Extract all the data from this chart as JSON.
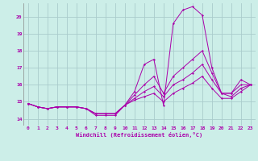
{
  "xlabel": "Windchill (Refroidissement éolien,°C)",
  "ylabel": "",
  "xlim": [
    -0.5,
    23.5
  ],
  "ylim": [
    13.6,
    20.8
  ],
  "yticks": [
    14,
    15,
    16,
    17,
    18,
    19,
    20
  ],
  "xticks": [
    0,
    1,
    2,
    3,
    4,
    5,
    6,
    7,
    8,
    9,
    10,
    11,
    12,
    13,
    14,
    15,
    16,
    17,
    18,
    19,
    20,
    21,
    22,
    23
  ],
  "bg_color": "#cceee8",
  "grid_color": "#aacccc",
  "line_color": "#aa00aa",
  "lines": [
    [
      14.9,
      14.7,
      14.6,
      14.7,
      14.7,
      14.7,
      14.6,
      14.2,
      14.2,
      14.2,
      14.8,
      15.6,
      17.2,
      17.5,
      14.8,
      19.6,
      20.4,
      20.6,
      20.1,
      17.0,
      15.5,
      15.5,
      16.3,
      16.0
    ],
    [
      14.9,
      14.7,
      14.6,
      14.7,
      14.7,
      14.7,
      14.6,
      14.3,
      14.3,
      14.3,
      14.8,
      15.4,
      16.0,
      16.5,
      15.5,
      16.5,
      17.0,
      17.5,
      18.0,
      16.7,
      15.5,
      15.5,
      16.0,
      16.0
    ],
    [
      14.9,
      14.7,
      14.6,
      14.7,
      14.7,
      14.7,
      14.6,
      14.3,
      14.3,
      14.3,
      14.8,
      15.2,
      15.6,
      15.9,
      15.3,
      16.0,
      16.3,
      16.7,
      17.2,
      16.3,
      15.5,
      15.3,
      15.8,
      16.0
    ],
    [
      14.9,
      14.7,
      14.6,
      14.7,
      14.7,
      14.7,
      14.6,
      14.3,
      14.3,
      14.3,
      14.8,
      15.1,
      15.3,
      15.5,
      15.0,
      15.5,
      15.8,
      16.1,
      16.5,
      15.8,
      15.2,
      15.2,
      15.6,
      16.0
    ]
  ]
}
